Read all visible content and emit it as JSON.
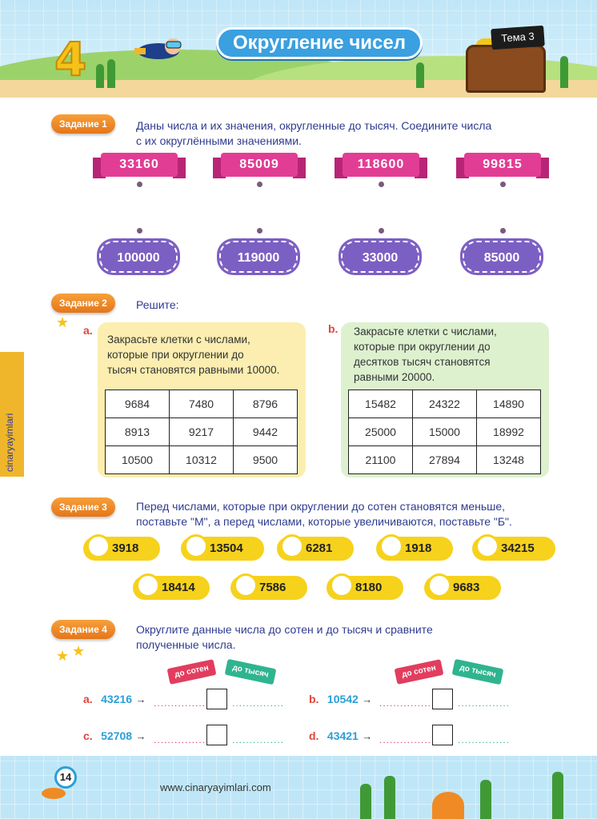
{
  "header": {
    "chapter": "4",
    "title": "Округление чисел",
    "topic": "Тема 3"
  },
  "side_tab": {
    "brand": "cinaryayimlari"
  },
  "task1": {
    "badge": "Задание 1",
    "text_line1": "Даны числа и их значения, округленные до тысяч. Соедините числа",
    "text_line2": "с их округлёнными значениями.",
    "numbers": [
      "33160",
      "85009",
      "118600",
      "99815"
    ],
    "rounded": [
      "100000",
      "119000",
      "33000",
      "85000"
    ]
  },
  "task2": {
    "badge": "Задание 2",
    "text": "Решите:",
    "a": {
      "letter": "a.",
      "line1": "Закрасьте клетки с числами,",
      "line2": "которые при округлении до",
      "line3": "тысяч становятся равными 10000.",
      "rows": [
        [
          "9684",
          "7480",
          "8796"
        ],
        [
          "8913",
          "9217",
          "9442"
        ],
        [
          "10500",
          "10312",
          "9500"
        ]
      ]
    },
    "b": {
      "letter": "b.",
      "line1": "Закрасьте клетки с числами,",
      "line2": "которые при округлении до",
      "line3": "десятков тысяч становятся",
      "line4": "равными 20000.",
      "rows": [
        [
          "15482",
          "24322",
          "14890"
        ],
        [
          "25000",
          "15000",
          "18992"
        ],
        [
          "21100",
          "27894",
          "13248"
        ]
      ]
    }
  },
  "task3": {
    "badge": "Задание 3",
    "text_line1": "Перед числами, которые при округлении до сотен становятся меньше,",
    "text_line2": "поставьте \"М\", а перед числами, которые увеличиваются, поставьте \"Б\".",
    "row1": [
      "3918",
      "13504",
      "6281",
      "1918",
      "34215"
    ],
    "row2": [
      "18414",
      "7586",
      "8180",
      "9683"
    ]
  },
  "task4": {
    "badge": "Задание 4",
    "text_line1": "Округлите данные числа до сотен и до тысяч и сравните",
    "text_line2": "полученные числа.",
    "label_hundreds": "до сотен",
    "label_thousands": "до тысяч",
    "arrow": "→",
    "dots": "...............",
    "items": [
      {
        "letter": "a.",
        "number": "43216"
      },
      {
        "letter": "b.",
        "number": "10542"
      },
      {
        "letter": "c.",
        "number": "52708"
      },
      {
        "letter": "d.",
        "number": "43421"
      }
    ]
  },
  "footer": {
    "page": "14",
    "site": "www.cinaryayimlari.com"
  },
  "colors": {
    "badge_orange": "#e5761a",
    "ribbon_pink": "#e23d94",
    "plaque_purple": "#7c5fc3",
    "pill_yellow": "#f6d21c",
    "text_blue": "#2f3b8f"
  }
}
